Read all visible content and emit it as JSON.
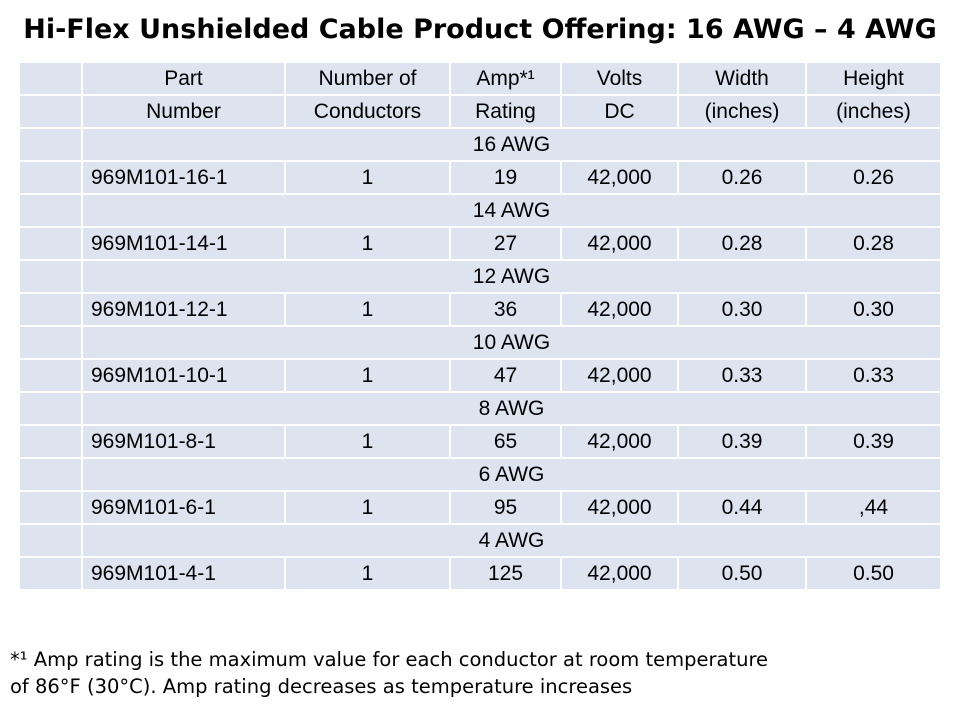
{
  "title": "Hi-Flex Unshielded Cable Product Offering: 16 AWG – 4 AWG",
  "header": {
    "row1": [
      "Part",
      "Number of",
      "Amp*¹",
      "Volts",
      "Width",
      "Height"
    ],
    "row2": [
      "Number",
      "Conductors",
      "Rating",
      "DC",
      "(inches)",
      "(inches)"
    ]
  },
  "groups": [
    {
      "gauge": "16 AWG",
      "part": "969M101-16-1",
      "conductors": "1",
      "amp": "19",
      "volts": "42,000",
      "width": "0.26",
      "height": "0.26"
    },
    {
      "gauge": "14 AWG",
      "part": "969M101-14-1",
      "conductors": "1",
      "amp": "27",
      "volts": "42,000",
      "width": "0.28",
      "height": "0.28"
    },
    {
      "gauge": "12 AWG",
      "part": "969M101-12-1",
      "conductors": "1",
      "amp": "36",
      "volts": "42,000",
      "width": "0.30",
      "height": "0.30"
    },
    {
      "gauge": "10 AWG",
      "part": "969M101-10-1",
      "conductors": "1",
      "amp": "47",
      "volts": "42,000",
      "width": "0.33",
      "height": "0.33"
    },
    {
      "gauge": "8 AWG",
      "part": "969M101-8-1",
      "conductors": "1",
      "amp": "65",
      "volts": "42,000",
      "width": "0.39",
      "height": "0.39"
    },
    {
      "gauge": "6 AWG",
      "part": "969M101-6-1",
      "conductors": "1",
      "amp": "95",
      "volts": "42,000",
      "width": "0.44",
      "height": ",44"
    },
    {
      "gauge": "4 AWG",
      "part": "969M101-4-1",
      "conductors": "1",
      "amp": "125",
      "volts": "42,000",
      "width": "0.50",
      "height": "0.50"
    }
  ],
  "footnote": {
    "line1": "*¹ Amp rating is the maximum value for each conductor at room temperature",
    "line2": "of 86°F (30°C).  Amp rating decreases as temperature increases"
  }
}
